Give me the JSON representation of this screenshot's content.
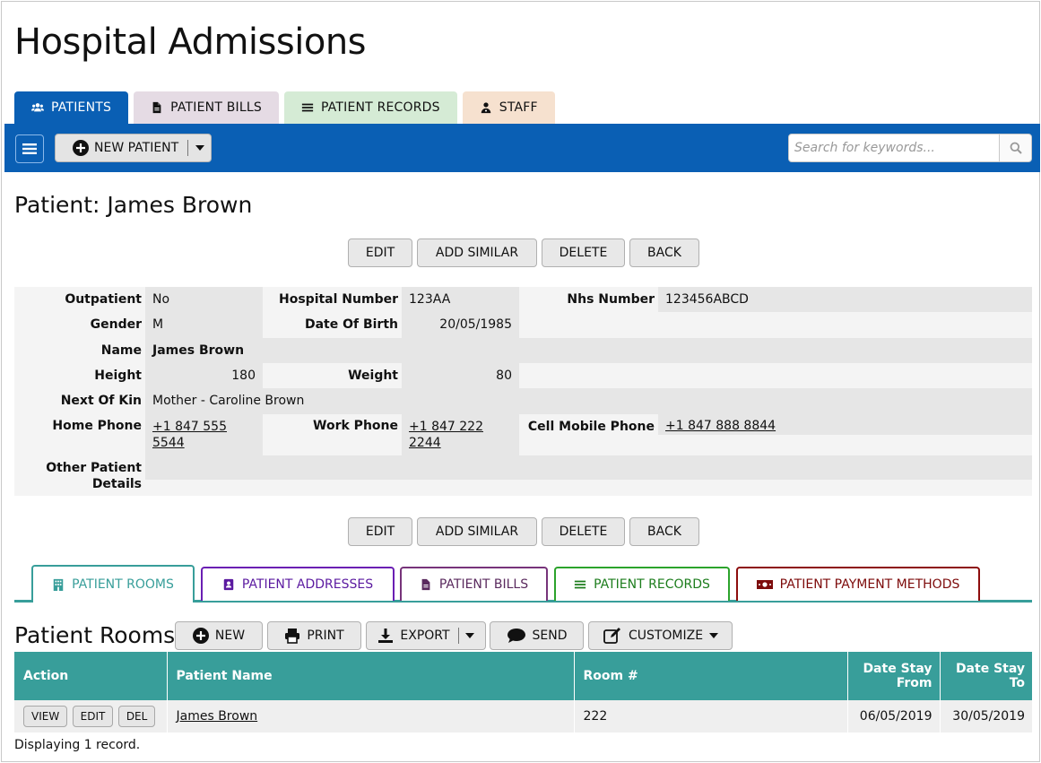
{
  "app": {
    "title": "Hospital Admissions"
  },
  "top_tabs": [
    {
      "label": "PATIENTS",
      "icon": "users-icon",
      "active": true,
      "color": "#0a5fb4"
    },
    {
      "label": "PATIENT BILLS",
      "icon": "file-icon",
      "color": "#e5dbe4"
    },
    {
      "label": "PATIENT RECORDS",
      "icon": "list-icon",
      "color": "#d5ebd5"
    },
    {
      "label": "STAFF",
      "icon": "user-doctor-icon",
      "color": "#f6e1cf"
    }
  ],
  "toolbar": {
    "new_patient_label": "NEW PATIENT",
    "search_placeholder": "Search for keywords..."
  },
  "record": {
    "heading": "Patient: James Brown",
    "actions": {
      "edit": "EDIT",
      "add_similar": "ADD SIMILAR",
      "delete": "DELETE",
      "back": "BACK"
    },
    "fields": {
      "outpatient": {
        "label": "Outpatient",
        "value": "No"
      },
      "hospital_number": {
        "label": "Hospital Number",
        "value": "123AA"
      },
      "nhs_number": {
        "label": "Nhs Number",
        "value": "123456ABCD"
      },
      "gender": {
        "label": "Gender",
        "value": "M"
      },
      "date_of_birth": {
        "label": "Date Of Birth",
        "value": "20/05/1985"
      },
      "name": {
        "label": "Name",
        "value": "James Brown"
      },
      "height": {
        "label": "Height",
        "value": "180"
      },
      "weight": {
        "label": "Weight",
        "value": "80"
      },
      "next_of_kin": {
        "label": "Next Of Kin",
        "value": "Mother - Caroline Brown"
      },
      "home_phone": {
        "label": "Home Phone",
        "value": "+1 847 555 5544"
      },
      "work_phone": {
        "label": "Work Phone",
        "value": "+1 847 222 2244"
      },
      "cell_mobile_phone": {
        "label": "Cell Mobile Phone",
        "value": "+1 847 888 8844"
      },
      "other_details": {
        "label": "Other Patient Details",
        "value": ""
      }
    }
  },
  "sub_tabs": [
    {
      "label": "PATIENT ROOMS",
      "icon": "building-icon",
      "active": true,
      "color": "#389e9a"
    },
    {
      "label": "PATIENT ADDRESSES",
      "icon": "address-book-icon",
      "color": "#6a1fb3"
    },
    {
      "label": "PATIENT BILLS",
      "icon": "file-icon",
      "color": "#77347a"
    },
    {
      "label": "PATIENT RECORDS",
      "icon": "list-icon",
      "color": "#2ca32c"
    },
    {
      "label": "PATIENT PAYMENT METHODS",
      "icon": "money-bill-icon",
      "color": "#8d0d0d"
    }
  ],
  "rooms": {
    "heading": "Patient Rooms",
    "tools": {
      "new": "NEW",
      "print": "PRINT",
      "export": "EXPORT",
      "send": "SEND",
      "customize": "CUSTOMIZE"
    },
    "columns": {
      "action": "Action",
      "patient_name": "Patient Name",
      "room": "Room #",
      "from": "Date Stay From",
      "to": "Date Stay To"
    },
    "rows": [
      {
        "view": "VIEW",
        "edit": "EDIT",
        "del": "DEL",
        "patient_name": "James Brown",
        "room": "222",
        "from": "06/05/2019",
        "to": "30/05/2019"
      }
    ],
    "footer": "Displaying 1 record."
  }
}
